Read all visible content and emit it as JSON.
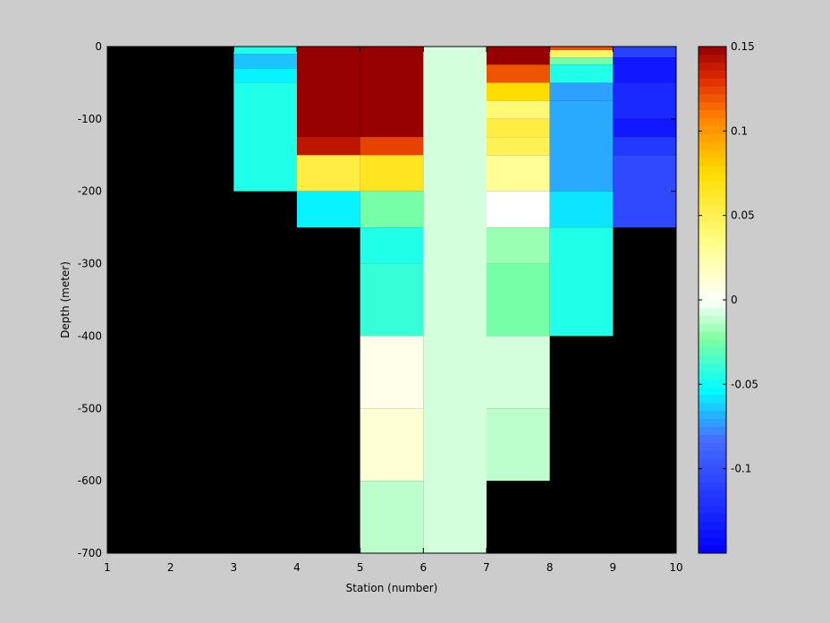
{
  "chart_data": {
    "type": "heatmap",
    "title": "",
    "xlabel": "Station (number)",
    "ylabel": "Depth (meter)",
    "xlim": [
      1,
      10
    ],
    "ylim": [
      -700,
      0
    ],
    "x_ticks": [
      1,
      2,
      3,
      4,
      5,
      6,
      7,
      8,
      9,
      10
    ],
    "y_ticks": [
      0,
      -100,
      -200,
      -300,
      -400,
      -500,
      -600,
      -700
    ],
    "x_tick_labels": [
      "1",
      "2",
      "3",
      "4",
      "5",
      "6",
      "7",
      "8",
      "9",
      "10"
    ],
    "y_tick_labels": [
      "0",
      "-100",
      "-200",
      "-300",
      "-400",
      "-500",
      "-600",
      "-700"
    ],
    "background_color": "#000000",
    "colorbar": {
      "clim": [
        -0.15,
        0.15
      ],
      "colormap": "jet_white_center",
      "ticks": [
        0.15,
        0.1,
        0.05,
        0,
        -0.05,
        -0.1
      ],
      "tick_labels": [
        "0.15",
        "0.1",
        "0.05",
        "0",
        "-0.05",
        "-0.1"
      ]
    },
    "cells": [
      {
        "x0": 3,
        "x1": 4,
        "y0": 0,
        "y1": -10,
        "value": -0.045
      },
      {
        "x0": 3,
        "x1": 4,
        "y0": -10,
        "y1": -30,
        "value": -0.065
      },
      {
        "x0": 3,
        "x1": 4,
        "y0": -30,
        "y1": -50,
        "value": -0.055
      },
      {
        "x0": 3,
        "x1": 4,
        "y0": -50,
        "y1": -200,
        "value": -0.045
      },
      {
        "x0": 4,
        "x1": 5,
        "y0": 0,
        "y1": -125,
        "value": 0.15
      },
      {
        "x0": 4,
        "x1": 5,
        "y0": -125,
        "y1": -150,
        "value": 0.14
      },
      {
        "x0": 4,
        "x1": 5,
        "y0": -150,
        "y1": -200,
        "value": 0.055
      },
      {
        "x0": 4,
        "x1": 5,
        "y0": -200,
        "y1": -250,
        "value": -0.055
      },
      {
        "x0": 5,
        "x1": 6,
        "y0": 0,
        "y1": -125,
        "value": 0.15
      },
      {
        "x0": 5,
        "x1": 6,
        "y0": -125,
        "y1": -150,
        "value": 0.125
      },
      {
        "x0": 5,
        "x1": 6,
        "y0": -150,
        "y1": -200,
        "value": 0.065
      },
      {
        "x0": 5,
        "x1": 6,
        "y0": -200,
        "y1": -250,
        "value": -0.025
      },
      {
        "x0": 5,
        "x1": 6,
        "y0": -250,
        "y1": -300,
        "value": -0.045
      },
      {
        "x0": 5,
        "x1": 6,
        "y0": -300,
        "y1": -400,
        "value": -0.04
      },
      {
        "x0": 5,
        "x1": 6,
        "y0": -400,
        "y1": -500,
        "value": 0.006
      },
      {
        "x0": 5,
        "x1": 6,
        "y0": -500,
        "y1": -600,
        "value": 0.012
      },
      {
        "x0": 5,
        "x1": 6,
        "y0": -600,
        "y1": -700,
        "value": -0.012
      },
      {
        "x0": 6,
        "x1": 7,
        "y0": 0,
        "y1": -700,
        "value": -0.008
      },
      {
        "x0": 7,
        "x1": 8,
        "y0": 0,
        "y1": -25,
        "value": 0.15
      },
      {
        "x0": 7,
        "x1": 8,
        "y0": -25,
        "y1": -50,
        "value": 0.12
      },
      {
        "x0": 7,
        "x1": 8,
        "y0": -50,
        "y1": -75,
        "value": 0.075
      },
      {
        "x0": 7,
        "x1": 8,
        "y0": -75,
        "y1": -100,
        "value": 0.04
      },
      {
        "x0": 7,
        "x1": 8,
        "y0": -100,
        "y1": -125,
        "value": 0.055
      },
      {
        "x0": 7,
        "x1": 8,
        "y0": -125,
        "y1": -150,
        "value": 0.05
      },
      {
        "x0": 7,
        "x1": 8,
        "y0": -150,
        "y1": -200,
        "value": 0.03
      },
      {
        "x0": 7,
        "x1": 8,
        "y0": -200,
        "y1": -250,
        "value": 0.0
      },
      {
        "x0": 7,
        "x1": 8,
        "y0": -250,
        "y1": -300,
        "value": -0.018
      },
      {
        "x0": 7,
        "x1": 8,
        "y0": -300,
        "y1": -400,
        "value": -0.025
      },
      {
        "x0": 7,
        "x1": 8,
        "y0": -400,
        "y1": -500,
        "value": -0.008
      },
      {
        "x0": 7,
        "x1": 8,
        "y0": -500,
        "y1": -600,
        "value": -0.012
      },
      {
        "x0": 8,
        "x1": 9,
        "y0": 0,
        "y1": -5,
        "value": 0.12
      },
      {
        "x0": 8,
        "x1": 9,
        "y0": -5,
        "y1": -15,
        "value": 0.045
      },
      {
        "x0": 8,
        "x1": 9,
        "y0": -15,
        "y1": -25,
        "value": -0.025
      },
      {
        "x0": 8,
        "x1": 9,
        "y0": -25,
        "y1": -50,
        "value": -0.045
      },
      {
        "x0": 8,
        "x1": 9,
        "y0": -50,
        "y1": -75,
        "value": -0.072
      },
      {
        "x0": 8,
        "x1": 9,
        "y0": -75,
        "y1": -200,
        "value": -0.07
      },
      {
        "x0": 8,
        "x1": 9,
        "y0": -200,
        "y1": -250,
        "value": -0.058
      },
      {
        "x0": 8,
        "x1": 9,
        "y0": -250,
        "y1": -400,
        "value": -0.045
      },
      {
        "x0": 9,
        "x1": 10,
        "y0": 0,
        "y1": -15,
        "value": -0.11
      },
      {
        "x0": 9,
        "x1": 10,
        "y0": -15,
        "y1": -50,
        "value": -0.135
      },
      {
        "x0": 9,
        "x1": 10,
        "y0": -50,
        "y1": -100,
        "value": -0.125
      },
      {
        "x0": 9,
        "x1": 10,
        "y0": -100,
        "y1": -125,
        "value": -0.135
      },
      {
        "x0": 9,
        "x1": 10,
        "y0": -125,
        "y1": -150,
        "value": -0.115
      },
      {
        "x0": 9,
        "x1": 10,
        "y0": -150,
        "y1": -250,
        "value": -0.105
      }
    ]
  }
}
